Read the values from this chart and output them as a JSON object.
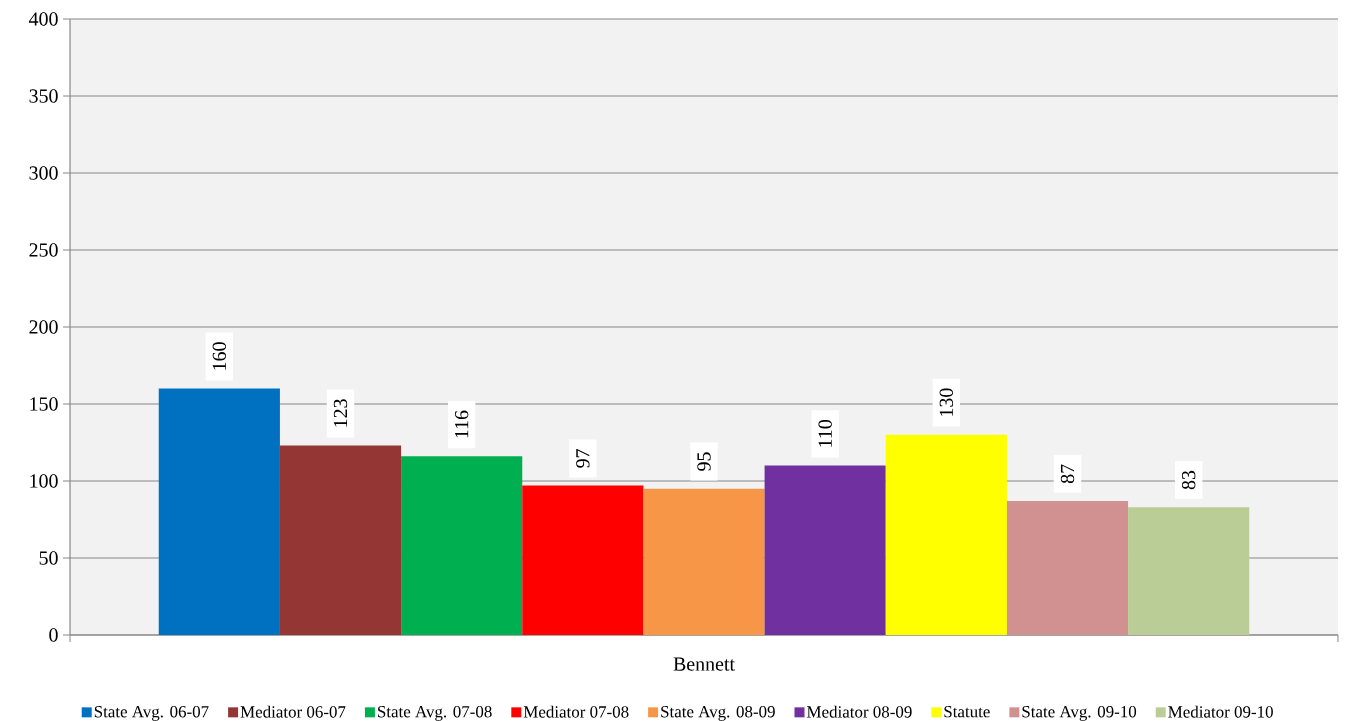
{
  "chart_data": {
    "type": "bar",
    "categories": [
      "Bennett"
    ],
    "series": [
      {
        "name": "State Avg. 06-07",
        "color": "#0070c0",
        "values": [
          160
        ]
      },
      {
        "name": "Mediator 06-07",
        "color": "#943634",
        "values": [
          123
        ]
      },
      {
        "name": "State Avg. 07-08",
        "color": "#00b050",
        "values": [
          116
        ]
      },
      {
        "name": "Mediator 07-08",
        "color": "#ff0000",
        "values": [
          97
        ]
      },
      {
        "name": "State Avg. 08-09",
        "color": "#f79646",
        "values": [
          95
        ]
      },
      {
        "name": "Mediator 08-09",
        "color": "#7030a0",
        "values": [
          110
        ]
      },
      {
        "name": "Statute",
        "color": "#ffff00",
        "values": [
          130
        ]
      },
      {
        "name": "State Avg. 09-10",
        "color": "#d29191",
        "values": [
          87
        ]
      },
      {
        "name": "Mediator 09-10",
        "color": "#bbcd97",
        "values": [
          83
        ]
      }
    ],
    "ylim": [
      0,
      400
    ],
    "yticks": [
      0,
      50,
      100,
      150,
      200,
      250,
      300,
      350,
      400
    ],
    "grid": "y",
    "legend": "bottom",
    "data_labels": true
  }
}
